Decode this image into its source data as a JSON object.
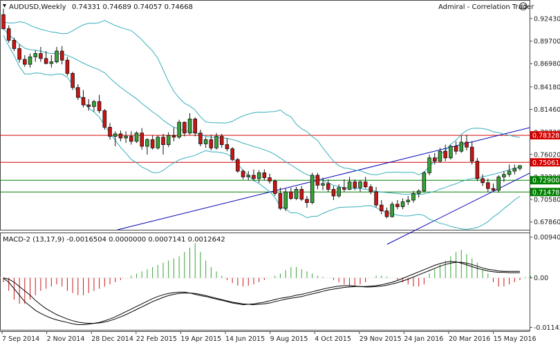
{
  "header": {
    "symbol_tf": "AUDUSD,Weekly",
    "ohlc": "0.74331 0.74689 0.74057 0.74668",
    "plugin": "Admiral - Correlation Trader",
    "smiley": "☺"
  },
  "chart_data": {
    "type": "candlestick",
    "instrument": "AUDUSD",
    "timeframe": "Weekly",
    "price_axis": {
      "ticks": [
        "0.92430",
        "0.89700",
        "0.86980",
        "0.84180",
        "0.81460",
        "0.78720",
        "0.76020",
        "0.73290",
        "0.70580",
        "0.67860"
      ],
      "ylim": [
        0.6725,
        0.94
      ]
    },
    "x_tick_labels": [
      "7 Sep 2014",
      "2 Nov 2014",
      "28 Dec 2014",
      "22 Feb 2015",
      "19 Apr 2015",
      "14 Jun 2015",
      "9 Aug 2015",
      "4 Oct 2015",
      "29 Nov 2015",
      "24 Jan 2016",
      "20 Mar 2016",
      "15 May 2016"
    ],
    "horizontal_levels": [
      {
        "value": 0.78328,
        "label": "0.78328",
        "color": "#d40000"
      },
      {
        "value": 0.75061,
        "label": "0.75061",
        "color": "#d40000"
      },
      {
        "value": 0.729,
        "label": "0.72900",
        "color": "#008000"
      },
      {
        "value": 0.71478,
        "label": "0.71478",
        "color": "#008000"
      }
    ],
    "candles": [
      [
        0.929,
        0.936,
        0.911,
        0.912
      ],
      [
        0.912,
        0.916,
        0.895,
        0.898
      ],
      [
        0.898,
        0.901,
        0.885,
        0.888
      ],
      [
        0.888,
        0.893,
        0.871,
        0.875
      ],
      [
        0.875,
        0.88,
        0.866,
        0.869
      ],
      [
        0.869,
        0.882,
        0.865,
        0.878
      ],
      [
        0.878,
        0.886,
        0.872,
        0.882
      ],
      [
        0.882,
        0.89,
        0.872,
        0.876
      ],
      [
        0.876,
        0.885,
        0.869,
        0.87
      ],
      [
        0.87,
        0.88,
        0.865,
        0.872
      ],
      [
        0.872,
        0.89,
        0.87,
        0.885
      ],
      [
        0.885,
        0.891,
        0.869,
        0.874
      ],
      [
        0.874,
        0.878,
        0.855,
        0.858
      ],
      [
        0.858,
        0.86,
        0.838,
        0.841
      ],
      [
        0.841,
        0.845,
        0.826,
        0.829
      ],
      [
        0.829,
        0.838,
        0.817,
        0.82
      ],
      [
        0.82,
        0.827,
        0.813,
        0.818
      ],
      [
        0.818,
        0.826,
        0.812,
        0.824
      ],
      [
        0.824,
        0.832,
        0.81,
        0.813
      ],
      [
        0.813,
        0.815,
        0.79,
        0.793
      ],
      [
        0.793,
        0.798,
        0.778,
        0.782
      ],
      [
        0.782,
        0.788,
        0.77,
        0.785
      ],
      [
        0.785,
        0.789,
        0.776,
        0.78
      ],
      [
        0.78,
        0.788,
        0.774,
        0.782
      ],
      [
        0.782,
        0.788,
        0.772,
        0.776
      ],
      [
        0.776,
        0.788,
        0.774,
        0.786
      ],
      [
        0.786,
        0.792,
        0.766,
        0.77
      ],
      [
        0.77,
        0.78,
        0.76,
        0.778
      ],
      [
        0.778,
        0.783,
        0.766,
        0.768
      ],
      [
        0.768,
        0.783,
        0.766,
        0.781
      ],
      [
        0.781,
        0.785,
        0.76,
        0.772
      ],
      [
        0.772,
        0.787,
        0.769,
        0.783
      ],
      [
        0.783,
        0.793,
        0.776,
        0.781
      ],
      [
        0.781,
        0.802,
        0.779,
        0.799
      ],
      [
        0.799,
        0.8,
        0.782,
        0.786
      ],
      [
        0.786,
        0.81,
        0.784,
        0.803
      ],
      [
        0.803,
        0.805,
        0.782,
        0.786
      ],
      [
        0.786,
        0.79,
        0.77,
        0.773
      ],
      [
        0.773,
        0.781,
        0.768,
        0.778
      ],
      [
        0.778,
        0.784,
        0.765,
        0.768
      ],
      [
        0.768,
        0.786,
        0.766,
        0.782
      ],
      [
        0.782,
        0.785,
        0.768,
        0.772
      ],
      [
        0.772,
        0.78,
        0.764,
        0.767
      ],
      [
        0.767,
        0.769,
        0.752,
        0.754
      ],
      [
        0.754,
        0.756,
        0.738,
        0.74
      ],
      [
        0.74,
        0.742,
        0.73,
        0.733
      ],
      [
        0.733,
        0.74,
        0.729,
        0.735
      ],
      [
        0.735,
        0.742,
        0.728,
        0.731
      ],
      [
        0.731,
        0.741,
        0.726,
        0.738
      ],
      [
        0.738,
        0.742,
        0.729,
        0.732
      ],
      [
        0.732,
        0.737,
        0.725,
        0.728
      ],
      [
        0.728,
        0.73,
        0.71,
        0.713
      ],
      [
        0.713,
        0.72,
        0.693,
        0.695
      ],
      [
        0.695,
        0.719,
        0.692,
        0.715
      ],
      [
        0.715,
        0.72,
        0.705,
        0.707
      ],
      [
        0.707,
        0.721,
        0.705,
        0.718
      ],
      [
        0.718,
        0.722,
        0.704,
        0.706
      ],
      [
        0.706,
        0.71,
        0.696,
        0.702
      ],
      [
        0.702,
        0.738,
        0.7,
        0.735
      ],
      [
        0.735,
        0.738,
        0.718,
        0.723
      ],
      [
        0.723,
        0.732,
        0.717,
        0.725
      ],
      [
        0.725,
        0.73,
        0.715,
        0.718
      ],
      [
        0.718,
        0.722,
        0.705,
        0.71
      ],
      [
        0.71,
        0.724,
        0.708,
        0.72
      ],
      [
        0.72,
        0.73,
        0.715,
        0.718
      ],
      [
        0.718,
        0.733,
        0.717,
        0.727
      ],
      [
        0.727,
        0.73,
        0.717,
        0.72
      ],
      [
        0.72,
        0.729,
        0.715,
        0.727
      ],
      [
        0.727,
        0.733,
        0.719,
        0.721
      ],
      [
        0.721,
        0.724,
        0.712,
        0.715
      ],
      [
        0.715,
        0.721,
        0.696,
        0.699
      ],
      [
        0.699,
        0.705,
        0.688,
        0.692
      ],
      [
        0.692,
        0.696,
        0.683,
        0.685
      ],
      [
        0.685,
        0.703,
        0.684,
        0.7
      ],
      [
        0.7,
        0.705,
        0.694,
        0.697
      ],
      [
        0.697,
        0.707,
        0.694,
        0.703
      ],
      [
        0.703,
        0.71,
        0.699,
        0.705
      ],
      [
        0.705,
        0.716,
        0.702,
        0.713
      ],
      [
        0.713,
        0.718,
        0.708,
        0.716
      ],
      [
        0.716,
        0.74,
        0.714,
        0.738
      ],
      [
        0.738,
        0.76,
        0.735,
        0.756
      ],
      [
        0.756,
        0.762,
        0.748,
        0.752
      ],
      [
        0.752,
        0.768,
        0.75,
        0.764
      ],
      [
        0.764,
        0.772,
        0.752,
        0.756
      ],
      [
        0.756,
        0.772,
        0.754,
        0.77
      ],
      [
        0.77,
        0.776,
        0.76,
        0.764
      ],
      [
        0.764,
        0.783,
        0.762,
        0.775
      ],
      [
        0.775,
        0.784,
        0.765,
        0.769
      ],
      [
        0.769,
        0.776,
        0.748,
        0.752
      ],
      [
        0.752,
        0.756,
        0.728,
        0.731
      ],
      [
        0.731,
        0.736,
        0.722,
        0.726
      ],
      [
        0.726,
        0.731,
        0.715,
        0.719
      ],
      [
        0.719,
        0.725,
        0.715,
        0.717
      ],
      [
        0.717,
        0.735,
        0.714,
        0.733
      ],
      [
        0.733,
        0.74,
        0.727,
        0.736
      ],
      [
        0.736,
        0.748,
        0.733,
        0.74
      ],
      [
        0.74,
        0.748,
        0.736,
        0.7433
      ],
      [
        0.7433,
        0.7469,
        0.7406,
        0.7467
      ]
    ],
    "macd": {
      "label": "MACD-2 (13,17,9) -0.0016504 0.0000000 0.0007141 0.0012642",
      "ticks": [
        "0.009404",
        "0.00",
        "-0.011437"
      ],
      "ylim": [
        -0.012,
        0.01
      ],
      "histogram": [
        -0.001,
        -0.003,
        -0.005,
        -0.006,
        -0.006,
        -0.005,
        -0.004,
        -0.003,
        -0.0025,
        -0.002,
        -0.0015,
        -0.002,
        -0.003,
        -0.0035,
        -0.004,
        -0.004,
        -0.0035,
        -0.003,
        -0.0025,
        -0.002,
        -0.0015,
        -0.001,
        -0.0005,
        0,
        0.0005,
        0.001,
        0.0015,
        0.002,
        0.0025,
        0.003,
        0.0035,
        0.004,
        0.0045,
        0.005,
        0.006,
        0.007,
        0.008,
        0.006,
        0.004,
        0.0025,
        0.0015,
        0.0005,
        -0.0005,
        -0.0012,
        -0.0018,
        -0.002,
        -0.0018,
        -0.0015,
        -0.001,
        -0.0005,
        0,
        0.0005,
        0.001,
        0.0018,
        0.0025,
        0.0025,
        0.002,
        0.0015,
        0.001,
        0.0005,
        0.0002,
        0,
        -0.0005,
        -0.001,
        -0.0015,
        -0.002,
        -0.002,
        -0.0015,
        -0.001,
        0,
        0.0005,
        0.0005,
        0.0003,
        0,
        -0.0005,
        -0.001,
        -0.0015,
        -0.002,
        -0.002,
        -0.0015,
        0.001,
        0.002,
        0.003,
        0.004,
        0.005,
        0.006,
        0.0065,
        0.0055,
        0.0045,
        0.0035,
        0.002,
        0.001,
        -0.001,
        -0.002,
        -0.002,
        -0.0015,
        -0.001,
        -0.0005,
        0.0002,
        0.0005
      ],
      "macd_line": [
        -0.0001,
        -0.001,
        -0.0025,
        -0.004,
        -0.0055,
        -0.0065,
        -0.0075,
        -0.0082,
        -0.0088,
        -0.0093,
        -0.0097,
        -0.01,
        -0.0103,
        -0.0106,
        -0.0108,
        -0.0108,
        -0.0107,
        -0.0105,
        -0.0103,
        -0.0099,
        -0.0095,
        -0.009,
        -0.0084,
        -0.0078,
        -0.0072,
        -0.0066,
        -0.006,
        -0.0054,
        -0.0048,
        -0.0043,
        -0.0039,
        -0.0036,
        -0.0034,
        -0.0033,
        -0.0033,
        -0.0035,
        -0.0038,
        -0.0041,
        -0.0043,
        -0.0046,
        -0.0049,
        -0.0052,
        -0.0055,
        -0.0058,
        -0.006,
        -0.0062,
        -0.0061,
        -0.006,
        -0.0058,
        -0.0056,
        -0.0053,
        -0.005,
        -0.0047,
        -0.0045,
        -0.0043,
        -0.004,
        -0.0038,
        -0.0035,
        -0.0032,
        -0.0029,
        -0.0026,
        -0.0023,
        -0.0021,
        -0.0019,
        -0.0018,
        -0.0018,
        -0.0019,
        -0.002,
        -0.002,
        -0.0019,
        -0.0018,
        -0.0016,
        -0.0013,
        -0.001,
        -0.0006,
        -0.0001,
        0.0004,
        0.0009,
        0.0014,
        0.0019,
        0.0024,
        0.0029,
        0.0033,
        0.0036,
        0.0038,
        0.0037,
        0.0034,
        0.003,
        0.0026,
        0.0022,
        0.0019,
        0.0016,
        0.0014,
        0.0013,
        0.0013,
        0.0012,
        0.0012,
        0.0012
      ],
      "signal_line": [
        0,
        -0.0003,
        -0.001,
        -0.002,
        -0.003,
        -0.004,
        -0.0052,
        -0.0062,
        -0.0071,
        -0.0078,
        -0.0085,
        -0.009,
        -0.0095,
        -0.0099,
        -0.0102,
        -0.0104,
        -0.0105,
        -0.0105,
        -0.0104,
        -0.0102,
        -0.0099,
        -0.0095,
        -0.009,
        -0.0085,
        -0.0079,
        -0.0073,
        -0.0067,
        -0.0061,
        -0.0055,
        -0.005,
        -0.0045,
        -0.0041,
        -0.0038,
        -0.0036,
        -0.0035,
        -0.0035,
        -0.0036,
        -0.0038,
        -0.0041,
        -0.0044,
        -0.0047,
        -0.005,
        -0.0053,
        -0.0056,
        -0.0058,
        -0.006,
        -0.0061,
        -0.0062,
        -0.0061,
        -0.006,
        -0.0058,
        -0.0055,
        -0.0052,
        -0.0049,
        -0.0047,
        -0.0045,
        -0.0043,
        -0.004,
        -0.0037,
        -0.0034,
        -0.0031,
        -0.0028,
        -0.0026,
        -0.0024,
        -0.0022,
        -0.0021,
        -0.002,
        -0.002,
        -0.0021,
        -0.0021,
        -0.002,
        -0.0019,
        -0.0017,
        -0.0014,
        -0.0011,
        -0.0007,
        -0.0003,
        0.0002,
        0.0007,
        0.0012,
        0.0017,
        0.0022,
        0.0027,
        0.0031,
        0.0034,
        0.0036,
        0.0036,
        0.0034,
        0.0031,
        0.0027,
        0.0023,
        0.002,
        0.0018,
        0.0016,
        0.0015,
        0.0015,
        0.0015,
        0.0015
      ]
    }
  },
  "colors": {
    "bull": "#35a335",
    "bear": "#cc1414",
    "band": "#35aebc",
    "channel": "#0000b4",
    "resistance": "#d40000",
    "support": "#008000",
    "macd_up": "#35a335",
    "macd_down": "#cc1414"
  }
}
